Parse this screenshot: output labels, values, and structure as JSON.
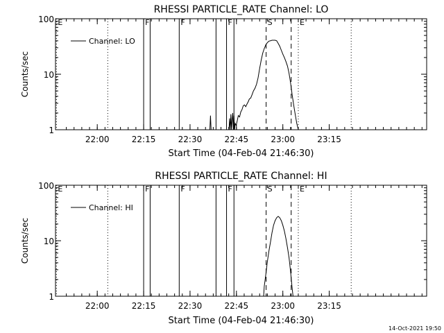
{
  "timestamp": "14-Oct-2021 19:50",
  "colors": {
    "background": "#ffffff",
    "foreground": "#000000"
  },
  "chart_data": [
    {
      "type": "line",
      "title": "RHESSI PARTICLE_RATE Channel: LO",
      "xlabel": "Start Time (04-Feb-04 21:46:30)",
      "ylabel": "Counts/sec",
      "x_unit": "minutes of day (UT, 04-Feb-04)",
      "xlim": [
        1306.5,
        1426.5
      ],
      "ylim": [
        1,
        100
      ],
      "y_scale": "log",
      "x_ticks": [
        {
          "value": 1320,
          "label": "22:00"
        },
        {
          "value": 1335,
          "label": "22:15"
        },
        {
          "value": 1350,
          "label": "22:30"
        },
        {
          "value": 1365,
          "label": "22:45"
        },
        {
          "value": 1380,
          "label": "23:00"
        },
        {
          "value": 1395,
          "label": "23:15"
        }
      ],
      "y_ticks": [
        {
          "value": 1,
          "label": "1"
        },
        {
          "value": 10,
          "label": "10"
        },
        {
          "value": 100,
          "label": "100"
        }
      ],
      "legend": {
        "position": "top-left",
        "entries": [
          "Channel: LO"
        ]
      },
      "markers": [
        {
          "x": 1306.8,
          "label": "E",
          "style": "dotted"
        },
        {
          "x": 1323.4,
          "label": "",
          "style": "dotted"
        },
        {
          "x": 1335.0,
          "label": "F",
          "style": "solid"
        },
        {
          "x": 1337.1,
          "label": "",
          "style": "solid"
        },
        {
          "x": 1346.5,
          "label": "F",
          "style": "solid"
        },
        {
          "x": 1358.4,
          "label": "",
          "style": "solid"
        },
        {
          "x": 1361.8,
          "label": "F",
          "style": "solid"
        },
        {
          "x": 1364.2,
          "label": "",
          "style": "solid"
        },
        {
          "x": 1374.6,
          "label": "S",
          "style": "dashed"
        },
        {
          "x": 1382.7,
          "label": "",
          "style": "dashed"
        },
        {
          "x": 1385.0,
          "label": "E",
          "style": "dotted"
        },
        {
          "x": 1402.1,
          "label": "",
          "style": "dotted"
        }
      ],
      "series": [
        {
          "name": "Channel: LO",
          "x": [
            1356.4,
            1356.6,
            1356.8,
            1357.0,
            1362.6,
            1362.8,
            1363.0,
            1363.2,
            1363.4,
            1363.6,
            1363.8,
            1364.0,
            1364.2,
            1364.4,
            1364.6,
            1364.9,
            1365.2,
            1365.6,
            1366.0,
            1366.4,
            1366.8,
            1367.2,
            1367.6,
            1368.0,
            1368.4,
            1368.8,
            1369.2,
            1369.6,
            1370.0,
            1370.5,
            1371.0,
            1371.5,
            1372.0,
            1372.5,
            1373.0,
            1373.5,
            1374.0,
            1374.5,
            1375.0,
            1375.5,
            1376.0,
            1376.5,
            1377.0,
            1377.5,
            1378.0,
            1378.5,
            1379.0,
            1379.5,
            1380.0,
            1380.5,
            1381.0,
            1381.5,
            1382.0,
            1382.5,
            1383.0,
            1383.5,
            1384.0,
            1384.5,
            1385.0
          ],
          "values": [
            1.0,
            1.8,
            1.0,
            1.0,
            1.0,
            1.6,
            1.0,
            1.9,
            1.0,
            1.5,
            2.0,
            1.0,
            1.8,
            1.0,
            1.3,
            1.2,
            1.4,
            1.8,
            1.7,
            2.1,
            2.3,
            2.7,
            2.8,
            2.6,
            2.9,
            3.2,
            3.6,
            3.7,
            4.2,
            5.0,
            5.6,
            6.6,
            8.6,
            12.8,
            18.0,
            24.0,
            29.0,
            34.0,
            37.0,
            39.5,
            40.0,
            41.0,
            41.0,
            41.0,
            40.0,
            36.0,
            32.0,
            27.0,
            23.0,
            20.0,
            17.0,
            14.0,
            10.5,
            7.0,
            4.3,
            2.8,
            1.9,
            1.3,
            1.0
          ]
        }
      ]
    },
    {
      "type": "line",
      "title": "RHESSI PARTICLE_RATE Channel: HI",
      "xlabel": "Start Time (04-Feb-04 21:46:30)",
      "ylabel": "Counts/sec",
      "x_unit": "minutes of day (UT, 04-Feb-04)",
      "xlim": [
        1306.5,
        1426.5
      ],
      "ylim": [
        1,
        100
      ],
      "y_scale": "log",
      "x_ticks": [
        {
          "value": 1320,
          "label": "22:00"
        },
        {
          "value": 1335,
          "label": "22:15"
        },
        {
          "value": 1350,
          "label": "22:30"
        },
        {
          "value": 1365,
          "label": "22:45"
        },
        {
          "value": 1380,
          "label": "23:00"
        },
        {
          "value": 1395,
          "label": "23:15"
        }
      ],
      "y_ticks": [
        {
          "value": 1,
          "label": "1"
        },
        {
          "value": 10,
          "label": "10"
        },
        {
          "value": 100,
          "label": "100"
        }
      ],
      "legend": {
        "position": "top-left",
        "entries": [
          "Channel: HI"
        ]
      },
      "markers": [
        {
          "x": 1306.8,
          "label": "E",
          "style": "dotted"
        },
        {
          "x": 1323.4,
          "label": "",
          "style": "dotted"
        },
        {
          "x": 1335.0,
          "label": "F",
          "style": "solid"
        },
        {
          "x": 1337.1,
          "label": "",
          "style": "solid"
        },
        {
          "x": 1346.5,
          "label": "F",
          "style": "solid"
        },
        {
          "x": 1358.4,
          "label": "",
          "style": "solid"
        },
        {
          "x": 1361.8,
          "label": "F",
          "style": "solid"
        },
        {
          "x": 1364.2,
          "label": "",
          "style": "solid"
        },
        {
          "x": 1374.6,
          "label": "S",
          "style": "dashed"
        },
        {
          "x": 1382.7,
          "label": "",
          "style": "dashed"
        },
        {
          "x": 1385.0,
          "label": "E",
          "style": "dotted"
        },
        {
          "x": 1402.1,
          "label": "",
          "style": "dotted"
        }
      ],
      "series": [
        {
          "name": "Channel: HI",
          "x": [
            1373.8,
            1374.0,
            1374.5,
            1375.0,
            1375.5,
            1376.0,
            1376.5,
            1377.0,
            1377.5,
            1378.0,
            1378.5,
            1379.0,
            1379.5,
            1380.0,
            1380.5,
            1381.0,
            1381.5,
            1382.0,
            1382.5,
            1383.0,
            1383.3
          ],
          "values": [
            1.0,
            1.5,
            2.5,
            4.2,
            6.5,
            9.5,
            14.0,
            19.0,
            23.0,
            26.0,
            27.5,
            26.0,
            23.0,
            19.0,
            15.0,
            11.0,
            7.5,
            5.0,
            2.8,
            1.4,
            1.0
          ]
        }
      ]
    }
  ]
}
